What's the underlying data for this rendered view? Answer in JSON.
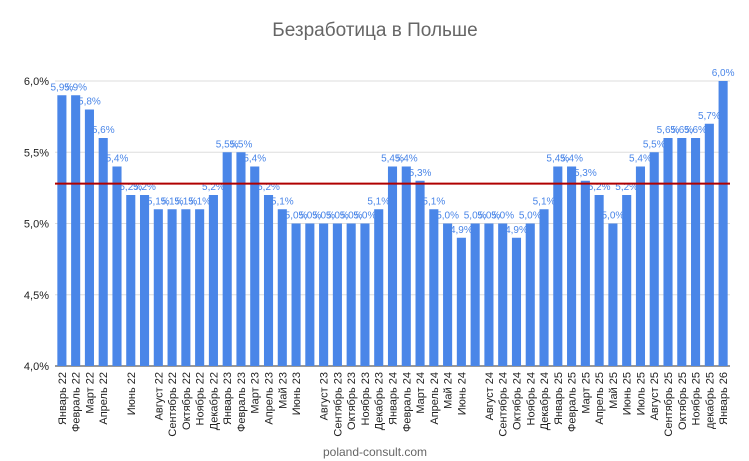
{
  "chart_data": {
    "type": "bar",
    "title": "Безработица в Польше",
    "source": "poland-consult.com",
    "categories": [
      "Январь 22",
      "Февраль 22",
      "Март 22",
      "Апрель 22",
      null,
      "Июнь 22",
      null,
      "Август 22",
      "Сентябрь 22",
      "Октябрь 22",
      "Ноябрь 22",
      "Декабрь 22",
      "Январь 23",
      "Февраль 23",
      "Март 23",
      "Апрель 23",
      "Май 23",
      "Июнь 23",
      null,
      "Август 23",
      "Сентябрь 23",
      "Октябрь 23",
      "Ноябрь 23",
      "Декабрь 23",
      "Январь 24",
      "Февраль 24",
      "Март 24",
      "Апрель 24",
      "Май 24",
      "Июнь 24",
      null,
      "Август 24",
      "Сентябрь 24",
      "Октябрь 24",
      "Ноябрь 24",
      "Декабрь 24",
      "Январь 25",
      "Февраль 25",
      "Март 25",
      "Апрель 25",
      "Май 25",
      "Июнь 25",
      "Июль 25",
      "Август 25",
      "Сентябрь 25",
      "Октябрь 25",
      "Ноябрь 25",
      "декабрь 25",
      "Январь 26"
    ],
    "values": [
      5.9,
      5.9,
      5.8,
      5.6,
      5.4,
      5.2,
      5.2,
      5.1,
      5.1,
      5.1,
      5.1,
      5.2,
      5.5,
      5.5,
      5.4,
      5.2,
      5.1,
      5.0,
      5.0,
      5.0,
      5.0,
      5.0,
      5.0,
      5.1,
      5.4,
      5.4,
      5.3,
      5.1,
      5.0,
      4.9,
      5.0,
      5.0,
      5.0,
      4.9,
      5.0,
      5.1,
      5.4,
      5.4,
      5.3,
      5.2,
      5.0,
      5.2,
      5.4,
      5.5,
      5.6,
      5.6,
      5.6,
      5.7,
      6.0
    ],
    "value_labels": [
      "5,9%",
      "5,9%",
      "5,8%",
      "5,6%",
      "5,4%",
      "5,2%",
      "5,2%",
      "5,1%",
      "5,1%",
      "5,1%",
      "5,1%",
      "5,2%",
      "5,5%",
      "5,5%",
      "5,4%",
      "5,2%",
      "5,1%",
      "5,0%",
      "5,0%",
      "5,0%",
      "5,0%",
      "5,0%",
      "5,0%",
      "5,1%",
      "5,4%",
      "5,4%",
      "5,3%",
      "5,1%",
      "5,0%",
      "4,9%",
      "5,0%",
      "5,0%",
      "5,0%",
      "4,9%",
      "5,0%",
      "5,1%",
      "5,4%",
      "5,4%",
      "5,3%",
      "5,2%",
      "5,0%",
      "5,2%",
      "5,4%",
      "5,5%",
      "5,6%",
      "5,6%",
      "5,6%",
      "5,7%",
      "6,0%"
    ],
    "color": "#4a86e8",
    "ylim": [
      4.0,
      6.0
    ],
    "yticks": [
      {
        "value": 4.0,
        "label": "4,0%"
      },
      {
        "value": 4.5,
        "label": "4,5%"
      },
      {
        "value": 5.0,
        "label": "5,0%"
      },
      {
        "value": 5.5,
        "label": "5,5%"
      },
      {
        "value": 6.0,
        "label": "6,0%"
      }
    ],
    "grid": true,
    "reference_line": {
      "value": 5.28,
      "color": "#b00000"
    }
  }
}
